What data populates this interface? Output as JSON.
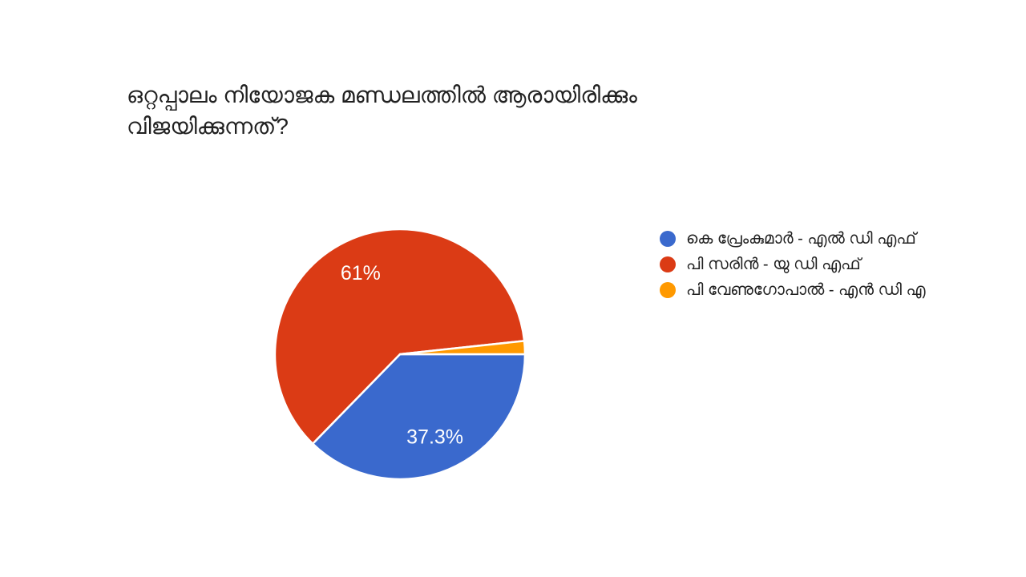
{
  "question": {
    "title_lines": [
      "ഒറ്റപ്പാലം നിയോജക മണ്ഡലത്തിൽ ആരായിരിക്കും",
      "വിജയിക്കുന്നത്?"
    ],
    "title_full": "ഒറ്റപ്പാലം നിയോജക മണ്ഡലത്തിൽ ആരായിരിക്കും വിജയിക്കുന്നത്?"
  },
  "chart_data": {
    "type": "pie",
    "title": "ഒറ്റപ്പാലം നിയോജക മണ്ഡലത്തിൽ ആരായിരിക്കും വിജയിക്കുന്നത്?",
    "legend_position": "right",
    "start_angle_deg": 90,
    "direction": "clockwise",
    "label_radius_ratio": 0.72,
    "slice_border_color": "#ffffff",
    "background_color": "#ffffff",
    "slices": [
      {
        "id": "premkumar-ldf",
        "label": "കെ പ്രേംകുമാർ - എൽ ഡി എഫ്",
        "value": 37.3,
        "display_label": "37.3%",
        "color": "#3A69CD"
      },
      {
        "id": "sarin-udf",
        "label": "പി സരിൻ - യു ഡി എഫ്",
        "value": 61,
        "display_label": "61%",
        "color": "#DB3B15"
      },
      {
        "id": "venugopal-nda",
        "label": "പി വേണുഗോപാൽ - എൻ ഡി എ",
        "value": 1.7,
        "display_label": "",
        "color": "#FF9900"
      }
    ]
  }
}
